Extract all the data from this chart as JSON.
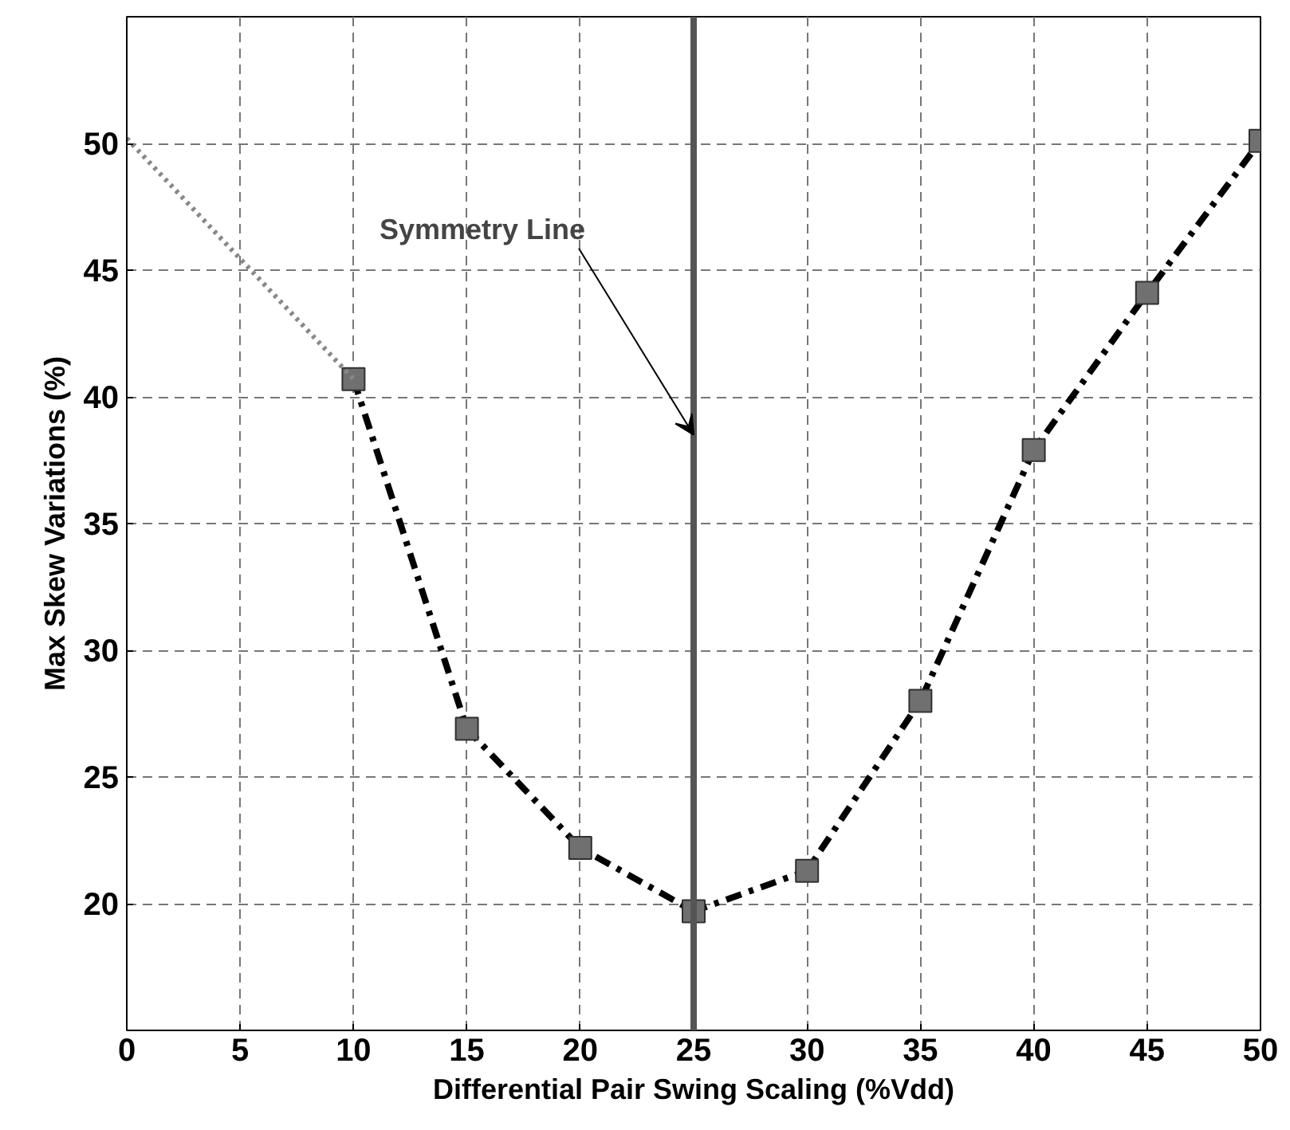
{
  "chart_data": {
    "type": "line",
    "xlabel": "Differential Pair Swing Scaling (%Vdd)",
    "ylabel": "Max Skew Variations (%)",
    "series": [
      {
        "x": [
          10,
          15,
          20,
          25,
          30,
          35,
          40,
          45,
          50
        ],
        "values": [
          40.7,
          26.9,
          22.2,
          19.7,
          21.3,
          28.0,
          37.9,
          44.1,
          50.1
        ],
        "color": "#000000",
        "marker": "square",
        "line_style": "dashed"
      },
      {
        "x": [
          0,
          10
        ],
        "values": [
          50.2,
          40.7
        ],
        "color": "#888888",
        "marker": "none",
        "line_style": "dotted"
      }
    ],
    "xlim": [
      0,
      50
    ],
    "xticks": [
      0,
      5,
      10,
      15,
      20,
      25,
      30,
      35,
      40,
      45,
      50
    ],
    "ylim": [
      15,
      55
    ],
    "yticks": [
      20,
      25,
      30,
      35,
      40,
      45,
      50
    ],
    "grid": true,
    "ref_lines": [
      {
        "axis": "x",
        "value": 25,
        "color": "#555555"
      }
    ],
    "annotations": [
      {
        "text": "Symmetry Line",
        "x": 25,
        "y": 38.5
      }
    ]
  }
}
